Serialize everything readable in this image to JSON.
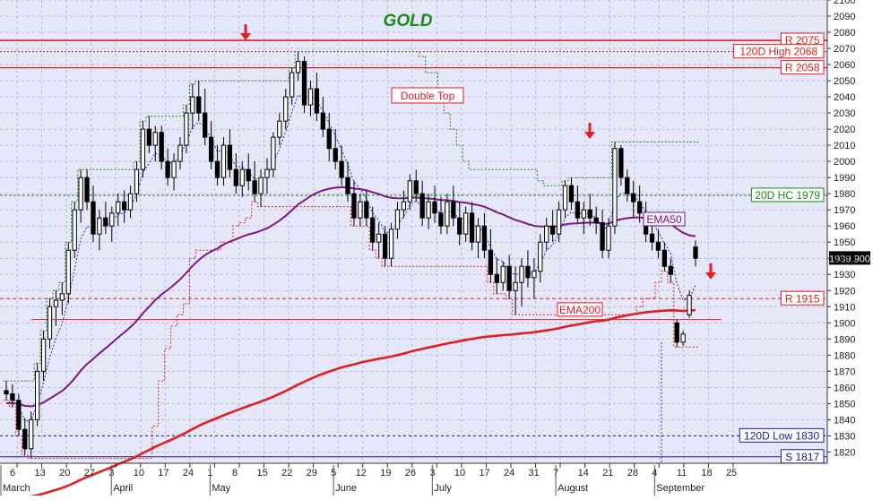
{
  "chart_data": {
    "type": "candlestick",
    "title": "GOLD",
    "ylim": [
      1813,
      2100
    ],
    "y_ticks": [
      1820,
      1830,
      1840,
      1850,
      1860,
      1870,
      1880,
      1890,
      1900,
      1910,
      1920,
      1930,
      1940,
      1950,
      1960,
      1970,
      1980,
      1990,
      2000,
      2010,
      2020,
      2030,
      2040,
      2050,
      2060,
      2070,
      2080,
      2090,
      2100
    ],
    "x_ticks": [
      "6",
      "13",
      "20",
      "27",
      "3",
      "10",
      "17",
      "24",
      "1",
      "8",
      "15",
      "22",
      "29",
      "5",
      "12",
      "19",
      "26",
      "3",
      "10",
      "17",
      "24",
      "31",
      "7",
      "14",
      "21",
      "28",
      "4",
      "11",
      "18",
      "25"
    ],
    "month_labels": [
      "March",
      "April",
      "May",
      "June",
      "July",
      "August",
      "September"
    ],
    "last_price": "1939.900",
    "horizontal_levels": [
      {
        "label": "R 2075",
        "value": 2075
      },
      {
        "label": "120D High 2068",
        "value": 2068
      },
      {
        "label": "R 2058",
        "value": 2058
      },
      {
        "label": "20D HC 1979",
        "value": 1979
      },
      {
        "label": "R 1915",
        "value": 1915
      },
      {
        "label": "120D Low 1830",
        "value": 1830
      },
      {
        "label": "S 1817",
        "value": 1817
      }
    ],
    "support_line_value": 1902,
    "annotations": [
      "Double Top"
    ],
    "series_labels": [
      "EMA50",
      "EMA200"
    ],
    "candles": [
      [
        1858,
        1864,
        1852,
        1856
      ],
      [
        1856,
        1862,
        1848,
        1852
      ],
      [
        1852,
        1856,
        1830,
        1834
      ],
      [
        1834,
        1841,
        1818,
        1822
      ],
      [
        1822,
        1845,
        1816,
        1840
      ],
      [
        1840,
        1875,
        1836,
        1870
      ],
      [
        1870,
        1895,
        1864,
        1890
      ],
      [
        1890,
        1915,
        1884,
        1910
      ],
      [
        1910,
        1920,
        1898,
        1914
      ],
      [
        1914,
        1925,
        1905,
        1918
      ],
      [
        1918,
        1950,
        1912,
        1945
      ],
      [
        1945,
        1975,
        1940,
        1970
      ],
      [
        1970,
        1995,
        1962,
        1990
      ],
      [
        1990,
        1995,
        1970,
        1975
      ],
      [
        1975,
        1985,
        1950,
        1955
      ],
      [
        1955,
        1970,
        1945,
        1965
      ],
      [
        1965,
        1975,
        1955,
        1960
      ],
      [
        1960,
        1972,
        1950,
        1968
      ],
      [
        1968,
        1980,
        1960,
        1975
      ],
      [
        1975,
        1982,
        1962,
        1970
      ],
      [
        1970,
        1985,
        1965,
        1980
      ],
      [
        1980,
        2000,
        1975,
        1995
      ],
      [
        1995,
        2025,
        1990,
        2020
      ],
      [
        2020,
        2028,
        2005,
        2010
      ],
      [
        2010,
        2022,
        2000,
        2018
      ],
      [
        2018,
        2022,
        1995,
        2000
      ],
      [
        2000,
        2008,
        1985,
        1990
      ],
      [
        1990,
        2005,
        1982,
        2000
      ],
      [
        2000,
        2015,
        1995,
        2010
      ],
      [
        2010,
        2035,
        2005,
        2030
      ],
      [
        2030,
        2048,
        2020,
        2040
      ],
      [
        2040,
        2050,
        2025,
        2030
      ],
      [
        2030,
        2045,
        2010,
        2015
      ],
      [
        2015,
        2025,
        1995,
        2000
      ],
      [
        2000,
        2010,
        1985,
        1990
      ],
      [
        1990,
        2015,
        1985,
        2010
      ],
      [
        2010,
        2020,
        1990,
        1995
      ],
      [
        1995,
        2005,
        1980,
        1985
      ],
      [
        1985,
        2000,
        1978,
        1995
      ],
      [
        1995,
        2005,
        1982,
        1988
      ],
      [
        1988,
        2000,
        1975,
        1980
      ],
      [
        1980,
        1995,
        1972,
        1990
      ],
      [
        1990,
        2002,
        1980,
        1995
      ],
      [
        1995,
        2018,
        1990,
        2015
      ],
      [
        2015,
        2030,
        2010,
        2025
      ],
      [
        2025,
        2045,
        2020,
        2040
      ],
      [
        2040,
        2058,
        2035,
        2055
      ],
      [
        2055,
        2068,
        2050,
        2062
      ],
      [
        2062,
        2065,
        2030,
        2035
      ],
      [
        2035,
        2050,
        2028,
        2045
      ],
      [
        2045,
        2055,
        2025,
        2030
      ],
      [
        2030,
        2040,
        2015,
        2020
      ],
      [
        2020,
        2030,
        2000,
        2008
      ],
      [
        2008,
        2020,
        1995,
        2000
      ],
      [
        2000,
        2010,
        1985,
        1990
      ],
      [
        1990,
        2000,
        1975,
        1980
      ],
      [
        1980,
        1988,
        1960,
        1965
      ],
      [
        1965,
        1980,
        1960,
        1975
      ],
      [
        1975,
        1982,
        1960,
        1965
      ],
      [
        1965,
        1972,
        1945,
        1950
      ],
      [
        1950,
        1962,
        1940,
        1955
      ],
      [
        1955,
        1960,
        1935,
        1940
      ],
      [
        1940,
        1962,
        1935,
        1958
      ],
      [
        1958,
        1975,
        1952,
        1970
      ],
      [
        1970,
        1982,
        1965,
        1975
      ],
      [
        1975,
        1992,
        1970,
        1988
      ],
      [
        1988,
        1995,
        1975,
        1980
      ],
      [
        1980,
        1988,
        1960,
        1965
      ],
      [
        1965,
        1980,
        1958,
        1975
      ],
      [
        1975,
        1985,
        1962,
        1968
      ],
      [
        1968,
        1978,
        1955,
        1960
      ],
      [
        1960,
        1980,
        1955,
        1975
      ],
      [
        1975,
        1985,
        1960,
        1965
      ],
      [
        1965,
        1975,
        1948,
        1955
      ],
      [
        1955,
        1972,
        1950,
        1968
      ],
      [
        1968,
        1975,
        1945,
        1950
      ],
      [
        1950,
        1965,
        1940,
        1960
      ],
      [
        1960,
        1968,
        1940,
        1945
      ],
      [
        1945,
        1958,
        1925,
        1930
      ],
      [
        1930,
        1940,
        1918,
        1925
      ],
      [
        1925,
        1938,
        1920,
        1935
      ],
      [
        1935,
        1942,
        1915,
        1920
      ],
      [
        1920,
        1935,
        1905,
        1925
      ],
      [
        1925,
        1940,
        1910,
        1935
      ],
      [
        1935,
        1945,
        1922,
        1928
      ],
      [
        1928,
        1940,
        1915,
        1932
      ],
      [
        1932,
        1955,
        1925,
        1950
      ],
      [
        1950,
        1965,
        1945,
        1960
      ],
      [
        1960,
        1970,
        1950,
        1955
      ],
      [
        1955,
        1975,
        1950,
        1970
      ],
      [
        1970,
        1988,
        1965,
        1985
      ],
      [
        1985,
        1990,
        1970,
        1975
      ],
      [
        1975,
        1985,
        1962,
        1965
      ],
      [
        1965,
        1975,
        1955,
        1970
      ],
      [
        1970,
        1980,
        1960,
        1965
      ],
      [
        1965,
        1972,
        1955,
        1962
      ],
      [
        1962,
        1970,
        1940,
        1945
      ],
      [
        1945,
        1965,
        1940,
        1960
      ],
      [
        1960,
        2012,
        1955,
        2008
      ],
      [
        2008,
        2010,
        1985,
        1990
      ],
      [
        1990,
        1995,
        1975,
        1980
      ],
      [
        1980,
        1988,
        1965,
        1975
      ],
      [
        1975,
        1985,
        1962,
        1968
      ],
      [
        1968,
        1975,
        1950,
        1955
      ],
      [
        1955,
        1962,
        1945,
        1950
      ],
      [
        1950,
        1958,
        1940,
        1945
      ],
      [
        1945,
        1950,
        1932,
        1935
      ],
      [
        1935,
        1940,
        1925,
        1930
      ],
      [
        1900,
        1902,
        1885,
        1888
      ],
      [
        1888,
        1895,
        1886,
        1893
      ],
      [
        1905,
        1920,
        1903,
        1917
      ],
      [
        1947,
        1951,
        1935,
        1940
      ]
    ]
  }
}
